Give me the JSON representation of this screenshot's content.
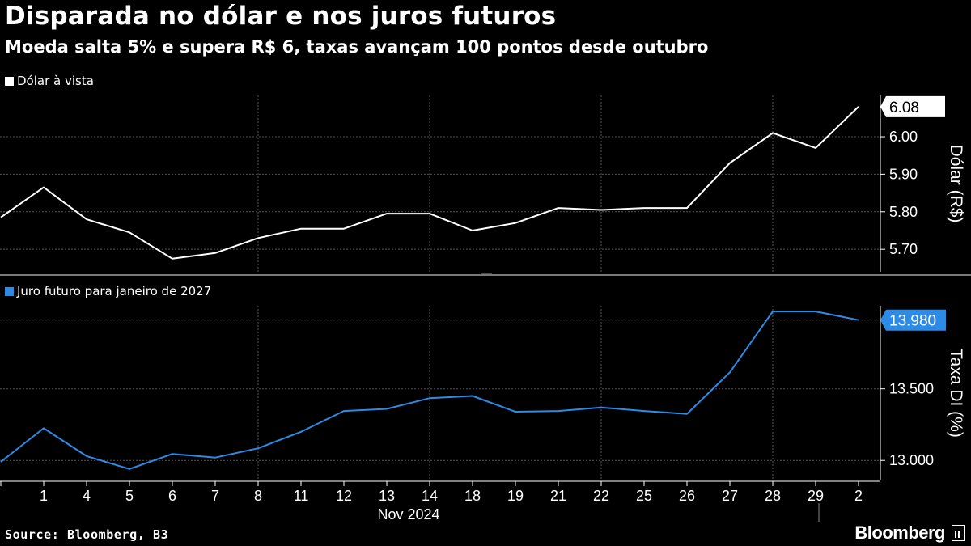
{
  "header": {
    "title": "Disparada no dólar e nos juros futuros",
    "subtitle": "Moeda salta 5% e supera R$ 6, taxas avançam 100 pontos desde outubro"
  },
  "footer": {
    "source": "Source: Bloomberg, B3",
    "brand": "Bloomberg"
  },
  "colors": {
    "background": "#000000",
    "usd_line": "#ffffff",
    "di_line": "#2d8be8",
    "grid": "#555555"
  },
  "chart_data": [
    {
      "type": "line",
      "legend": "Dólar à vista",
      "ylabel": "Dólar (R$)",
      "ylim": [
        5.64,
        6.11
      ],
      "yticks": [
        "5.70",
        "5.80",
        "5.90",
        "6.00"
      ],
      "ytick_values": [
        5.7,
        5.8,
        5.9,
        6.0
      ],
      "last_value_label": "6.08",
      "last_value": 6.08,
      "values": [
        5.785,
        5.865,
        5.78,
        5.745,
        5.675,
        5.69,
        5.73,
        5.755,
        5.755,
        5.795,
        5.795,
        5.75,
        5.77,
        5.81,
        5.805,
        5.81,
        5.81,
        5.93,
        6.01,
        5.97,
        6.08
      ]
    },
    {
      "type": "line",
      "legend": "Juro futuro para janeiro de 2027",
      "ylabel": "Taxa DI (%)",
      "ylim": [
        12.86,
        14.08
      ],
      "yticks": [
        "13.000",
        "13.500",
        "13.980"
      ],
      "ytick_values": [
        13.0,
        13.5,
        13.98
      ],
      "last_value_label": "13.980",
      "last_value": 13.98,
      "values": [
        12.99,
        13.225,
        13.03,
        12.94,
        13.045,
        13.02,
        13.085,
        13.2,
        13.345,
        13.36,
        13.435,
        13.45,
        13.34,
        13.345,
        13.37,
        13.345,
        13.325,
        13.615,
        14.04,
        14.04,
        13.98
      ]
    }
  ],
  "x_axis": {
    "categories": [
      "",
      "1",
      "4",
      "5",
      "6",
      "7",
      "8",
      "11",
      "12",
      "13",
      "14",
      "18",
      "19",
      "21",
      "22",
      "25",
      "26",
      "27",
      "28",
      "29",
      "2"
    ],
    "month_label": "Nov 2024"
  }
}
